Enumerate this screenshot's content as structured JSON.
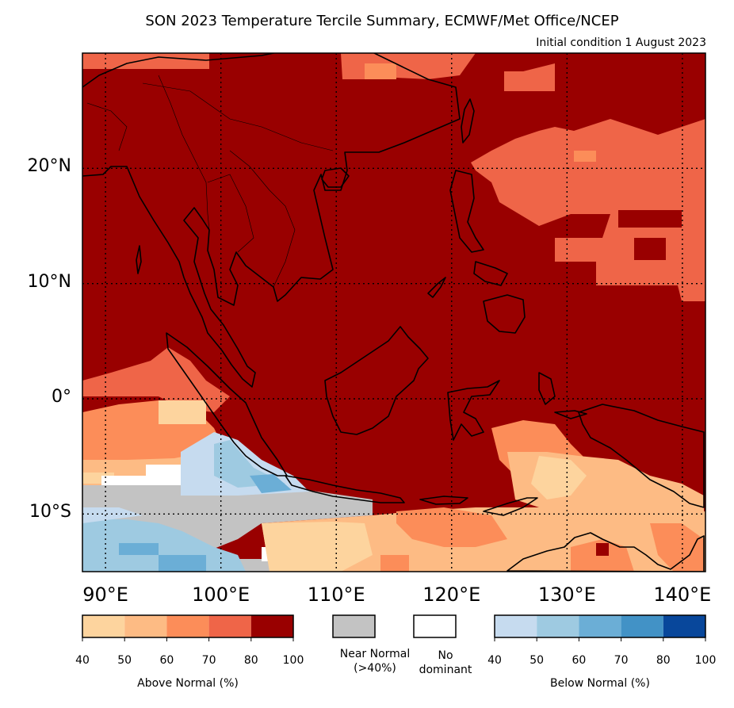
{
  "title": "SON 2023 Temperature Tercile Summary, ECMWF/Met Office/NCEP",
  "subtitle": "Initial condition 1 August 2023",
  "map": {
    "lon_range": [
      88,
      142
    ],
    "lat_range": [
      -15,
      30
    ],
    "lon_ticks": [
      {
        "value": 90,
        "label": "90°E"
      },
      {
        "value": 100,
        "label": "100°E"
      },
      {
        "value": 110,
        "label": "110°E"
      },
      {
        "value": 120,
        "label": "120°E"
      },
      {
        "value": 130,
        "label": "130°E"
      },
      {
        "value": 140,
        "label": "140°E"
      }
    ],
    "lat_ticks": [
      {
        "value": 20,
        "label": "20°N"
      },
      {
        "value": 10,
        "label": "10°N"
      },
      {
        "value": 0,
        "label": "0°"
      },
      {
        "value": -10,
        "label": "10°S"
      }
    ],
    "gridlines": "dotted"
  },
  "colors": {
    "above": [
      "#fdd49e",
      "#fdbb84",
      "#fc8d59",
      "#ef6548",
      "#990000"
    ],
    "near": "#c3c3c3",
    "none": "#ffffff",
    "below": [
      "#c6dbef",
      "#9ecae1",
      "#6baed6",
      "#4292c6",
      "#08479b"
    ]
  },
  "legend": {
    "above": {
      "label": "Above Normal (%)",
      "ticks": [
        "40",
        "50",
        "60",
        "70",
        "80",
        "100"
      ]
    },
    "near": {
      "label": "Near Normal\n(>40%)"
    },
    "none": {
      "label": "No\ndominant"
    },
    "below": {
      "label": "Below Normal (%)",
      "ticks": [
        "40",
        "50",
        "60",
        "70",
        "80",
        "100"
      ]
    }
  }
}
